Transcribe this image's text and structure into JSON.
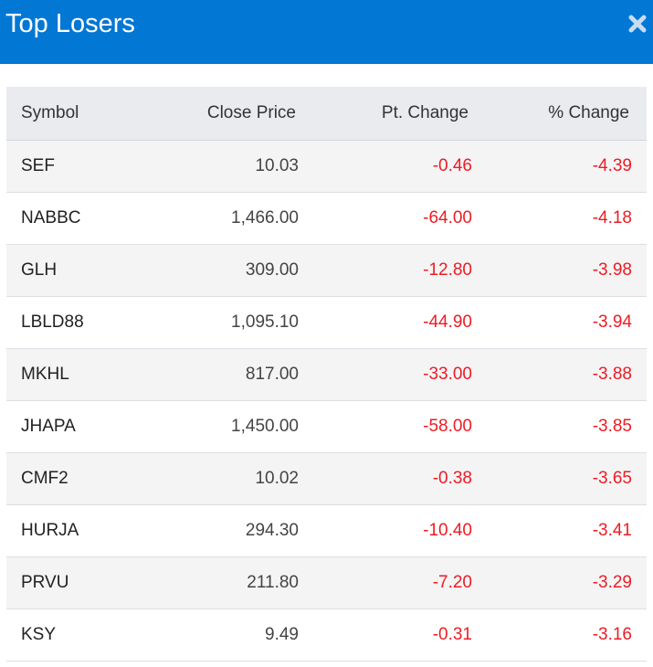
{
  "header": {
    "title": "Top Losers",
    "close_icon": "close-icon",
    "background_color": "#0277d4"
  },
  "table": {
    "columns": [
      "Symbol",
      "Close Price",
      "Pt. Change",
      "% Change"
    ],
    "negative_color": "#ed1c24",
    "rows": [
      {
        "symbol": "SEF",
        "close": "10.03",
        "pt": "-0.46",
        "pct": "-4.39"
      },
      {
        "symbol": "NABBC",
        "close": "1,466.00",
        "pt": "-64.00",
        "pct": "-4.18"
      },
      {
        "symbol": "GLH",
        "close": "309.00",
        "pt": "-12.80",
        "pct": "-3.98"
      },
      {
        "symbol": "LBLD88",
        "close": "1,095.10",
        "pt": "-44.90",
        "pct": "-3.94"
      },
      {
        "symbol": "MKHL",
        "close": "817.00",
        "pt": "-33.00",
        "pct": "-3.88"
      },
      {
        "symbol": "JHAPA",
        "close": "1,450.00",
        "pt": "-58.00",
        "pct": "-3.85"
      },
      {
        "symbol": "CMF2",
        "close": "10.02",
        "pt": "-0.38",
        "pct": "-3.65"
      },
      {
        "symbol": "HURJA",
        "close": "294.30",
        "pt": "-10.40",
        "pct": "-3.41"
      },
      {
        "symbol": "PRVU",
        "close": "211.80",
        "pt": "-7.20",
        "pct": "-3.29"
      },
      {
        "symbol": "KSY",
        "close": "9.49",
        "pt": "-0.31",
        "pct": "-3.16"
      }
    ]
  }
}
